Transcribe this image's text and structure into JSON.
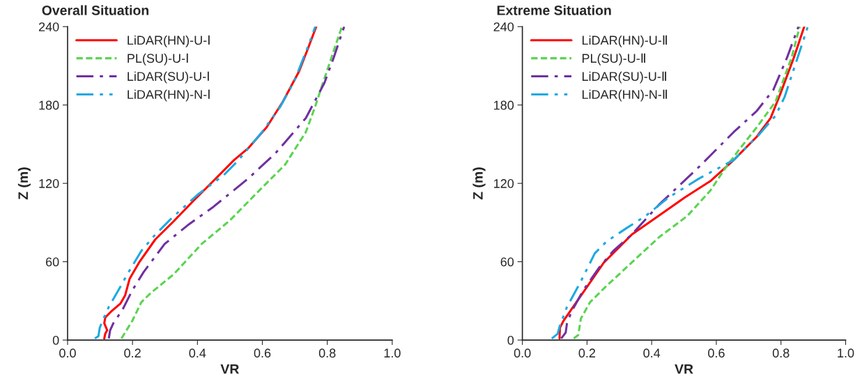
{
  "chart_data": [
    {
      "type": "line",
      "title": "Overall Situation",
      "xlabel": "VR",
      "ylabel": "Z (m)",
      "legend": "top left",
      "grid": false,
      "xlim": [
        0,
        1
      ],
      "xticks": [
        {
          "value": 0,
          "label": "0.0"
        },
        {
          "value": 0.2,
          "label": "0.2"
        },
        {
          "value": 0.4,
          "label": "0.4"
        },
        {
          "value": 0.6,
          "label": "0.6"
        },
        {
          "value": 0.8,
          "label": "0.8"
        },
        {
          "value": 1,
          "label": "1.0"
        }
      ],
      "ylim": [
        0,
        240
      ],
      "yticks": [
        0,
        60,
        120,
        180,
        240
      ],
      "series": [
        {
          "name": "LiDAR(HN)-U-Ⅰ",
          "color": "#ff0000",
          "line_style": "solid",
          "x": [
            0.113,
            0.116,
            0.122,
            0.113,
            0.116,
            0.134,
            0.163,
            0.177,
            0.191,
            0.22,
            0.27,
            0.327,
            0.384,
            0.449,
            0.513,
            0.556,
            0.613,
            0.663,
            0.713,
            0.741,
            0.766
          ],
          "values": [
            1.2,
            4.8,
            7.5,
            12.9,
            17.3,
            21.8,
            28,
            34,
            46.8,
            59.3,
            77,
            91,
            105.7,
            121.8,
            137.9,
            146.8,
            162.9,
            182.5,
            205.7,
            223.6,
            240
          ]
        },
        {
          "name": "PL(SU)-U-Ⅰ",
          "color": "#5ad451",
          "line_style": "dashed",
          "x": [
            0.166,
            0.177,
            0.199,
            0.227,
            0.256,
            0.327,
            0.413,
            0.499,
            0.584,
            0.67,
            0.734,
            0.763,
            0.784,
            0.813,
            0.845
          ],
          "values": [
            1.2,
            5.7,
            14.6,
            28.9,
            36,
            50.4,
            73.6,
            91.4,
            112.9,
            134.3,
            159.3,
            179,
            195,
            216.4,
            240
          ]
        },
        {
          "name": "LiDAR(SU)-U-Ⅰ",
          "color": "#7030a0",
          "line_style": "dashdot",
          "x": [
            0.127,
            0.131,
            0.141,
            0.17,
            0.199,
            0.234,
            0.299,
            0.37,
            0.449,
            0.556,
            0.641,
            0.734,
            0.791,
            0.82,
            0.852
          ],
          "values": [
            1.2,
            7.5,
            12.9,
            23.6,
            37.9,
            52,
            73.6,
            87.9,
            102,
            123.6,
            143.2,
            170,
            196.8,
            216.4,
            240
          ]
        },
        {
          "name": "LiDAR(HN)-N-Ⅰ",
          "color": "#1ea9e1",
          "line_style": "dashdotdot",
          "x": [
            0.084,
            0.095,
            0.099,
            0.109,
            0.127,
            0.156,
            0.184,
            0.227,
            0.27,
            0.32,
            0.399,
            0.484,
            0.527,
            0.599,
            0.656,
            0.699,
            0.741,
            0.763
          ],
          "values": [
            1.2,
            3,
            9.3,
            15.5,
            25.4,
            37.9,
            50.4,
            68.2,
            80.7,
            93.2,
            111,
            127,
            137.9,
            159.3,
            179,
            198.6,
            225,
            240
          ]
        }
      ]
    },
    {
      "type": "line",
      "title": "Extreme Situation",
      "xlabel": "VR",
      "ylabel": "Z (m)",
      "legend": "top left",
      "grid": false,
      "xlim": [
        0,
        1
      ],
      "xticks": [
        {
          "value": 0,
          "label": "0.0"
        },
        {
          "value": 0.2,
          "label": "0.2"
        },
        {
          "value": 0.4,
          "label": "0.4"
        },
        {
          "value": 0.6,
          "label": "0.6"
        },
        {
          "value": 0.8,
          "label": "0.8"
        },
        {
          "value": 1,
          "label": "1.0"
        }
      ],
      "ylim": [
        0,
        240
      ],
      "yticks": [
        0,
        60,
        120,
        180,
        240
      ],
      "series": [
        {
          "name": "LiDAR(HN)-U-Ⅱ",
          "color": "#ff0000",
          "line_style": "solid",
          "x": [
            0.115,
            0.116,
            0.127,
            0.152,
            0.202,
            0.252,
            0.295,
            0.338,
            0.41,
            0.503,
            0.582,
            0.654,
            0.725,
            0.768,
            0.797,
            0.84,
            0.872
          ],
          "values": [
            1.2,
            9.3,
            14.6,
            23.6,
            41.4,
            59.3,
            70,
            80.7,
            93.2,
            109.3,
            121.8,
            137.9,
            155.7,
            170,
            187.9,
            216.4,
            240
          ]
        },
        {
          "name": "PL(SU)-U-Ⅱ",
          "color": "#5ad451",
          "line_style": "dashed",
          "x": [
            0.159,
            0.173,
            0.181,
            0.209,
            0.26,
            0.338,
            0.424,
            0.51,
            0.582,
            0.625,
            0.668,
            0.725,
            0.783,
            0.833,
            0.858
          ],
          "values": [
            1.2,
            3.9,
            16.4,
            28.9,
            41.4,
            59.3,
            79,
            95,
            114.6,
            130.7,
            145,
            162.9,
            182.5,
            216.4,
            240
          ]
        },
        {
          "name": "LiDAR(SU)-U-Ⅱ",
          "color": "#7030a0",
          "line_style": "dashdot",
          "x": [
            0.12,
            0.134,
            0.138,
            0.152,
            0.188,
            0.238,
            0.281,
            0.338,
            0.424,
            0.546,
            0.654,
            0.725,
            0.776,
            0.819,
            0.854
          ],
          "values": [
            1.2,
            5.7,
            12.9,
            21.8,
            37.9,
            55.7,
            68.2,
            80.7,
            104,
            132.5,
            159.3,
            175.4,
            191.4,
            216.4,
            240
          ]
        },
        {
          "name": "LiDAR(HN)-N-Ⅱ",
          "color": "#1ea9e1",
          "line_style": "dashdotdot",
          "x": [
            0.091,
            0.109,
            0.116,
            0.138,
            0.181,
            0.224,
            0.26,
            0.324,
            0.381,
            0.453,
            0.546,
            0.654,
            0.733,
            0.783,
            0.811,
            0.847,
            0.883
          ],
          "values": [
            1.2,
            4.8,
            11,
            25.4,
            45,
            66.4,
            75.4,
            86,
            95,
            109.3,
            123.6,
            137.9,
            157.5,
            171.8,
            186,
            212.9,
            240
          ]
        }
      ]
    }
  ]
}
